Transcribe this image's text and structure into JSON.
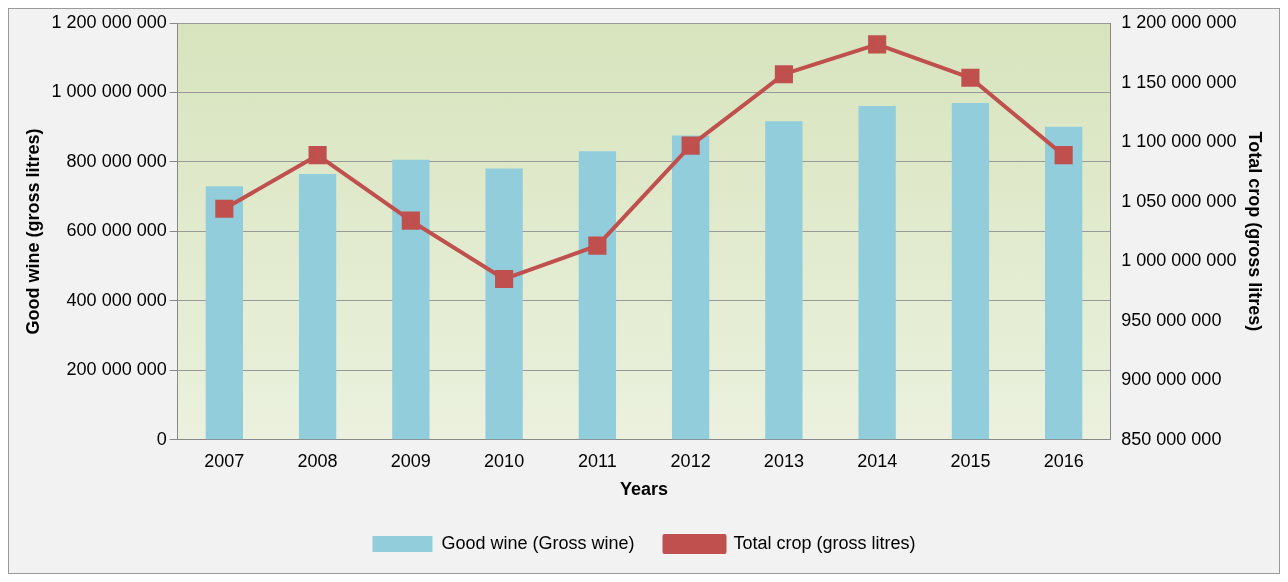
{
  "chart_data": {
    "type": "bar",
    "xlabel": "Years",
    "ylabel": "Good wine (gross litres)",
    "y2label": "Total crop (gross litres)",
    "categories": [
      "2007",
      "2008",
      "2009",
      "2010",
      "2011",
      "2012",
      "2013",
      "2014",
      "2015",
      "2016"
    ],
    "series": [
      {
        "name": "Good wine (Gross wine)",
        "color": "#92cddc",
        "values": [
          730000000,
          765000000,
          806000000,
          781000000,
          831000000,
          876000000,
          917000000,
          961000000,
          970000000,
          901000000
        ]
      },
      {
        "name": "Total crop (gross litres)",
        "color": "#c0504d",
        "type": "line",
        "axis": "y2",
        "marker": "square",
        "values": [
          1044000000,
          1089000000,
          1034000000,
          985000000,
          1013000000,
          1097000000,
          1157000000,
          1182000000,
          1154000000,
          1089000000
        ]
      }
    ],
    "ylim": [
      0,
      1200000000
    ],
    "yticks": [
      0,
      {
        "value": 200000000,
        "label": "200 000 000"
      },
      {
        "value": 400000000,
        "label": "400 000 000"
      },
      {
        "value": 600000000,
        "label": "600 000 000"
      },
      {
        "value": 800000000,
        "label": "800 000 000"
      },
      {
        "value": 1000000000,
        "label": "1 000 000 000"
      },
      {
        "value": 1200000000,
        "label": "1 200 000 000"
      }
    ],
    "y2lim": [
      850000000,
      1200000000
    ],
    "y2ticks": [
      {
        "value": 850000000,
        "label": "850 000 000"
      },
      {
        "value": 900000000,
        "label": "900 000 000"
      },
      {
        "value": 950000000,
        "label": "950 000 000"
      },
      {
        "value": 1000000000,
        "label": "1 000 000 000"
      },
      {
        "value": 1050000000,
        "label": "1 050 000 000"
      },
      {
        "value": 1100000000,
        "label": "1 100 000 000"
      },
      {
        "value": 1150000000,
        "label": "1 150 000 000"
      },
      {
        "value": 1200000000,
        "label": "1 200 000 000"
      }
    ],
    "grid": "y",
    "legend": "bottom"
  }
}
